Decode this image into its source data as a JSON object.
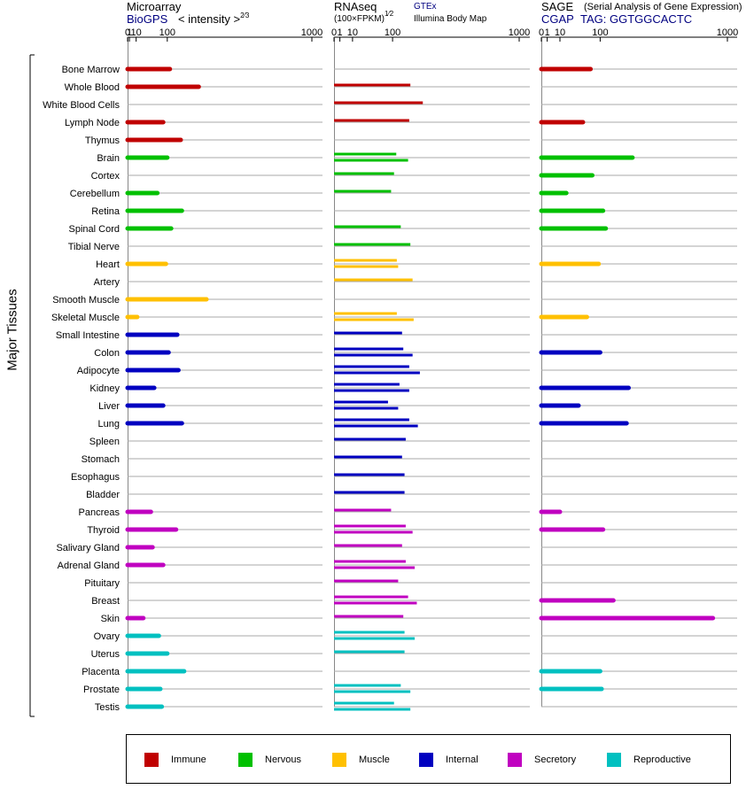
{
  "headers": {
    "microarray": {
      "title": "Microarray",
      "source": "BioGPS",
      "scale_label": "< intensity >",
      "scale_exp": "2⁄3"
    },
    "rnaseq": {
      "title": "RNAseq",
      "scale_label": "(100×FPKM)",
      "scale_exp": "1⁄2",
      "source_a": "GTEx",
      "source_b": "Illumina Body Map"
    },
    "sage": {
      "title": "SAGE",
      "subtitle": "(Serial Analysis of Gene Expression)",
      "source": "CGAP",
      "tag": "TAG: GGTGGCACTC"
    }
  },
  "y_axis_title": "Major Tissues",
  "colors": {
    "Immune": "#c00000",
    "Nervous": "#00c000",
    "Muscle": "#ffc000",
    "Internal": "#0000c0",
    "Secretory": "#c000c0",
    "Reproductive": "#00c0c0"
  },
  "legend": [
    {
      "name": "Immune",
      "color": "#c00000"
    },
    {
      "name": "Nervous",
      "color": "#00c000"
    },
    {
      "name": "Muscle",
      "color": "#ffc000"
    },
    {
      "name": "Internal",
      "color": "#0000c0"
    },
    {
      "name": "Secretory",
      "color": "#c000c0"
    },
    {
      "name": "Reproductive",
      "color": "#00c0c0"
    }
  ],
  "chart_data": {
    "type": "bar",
    "orientation": "horizontal",
    "xscale": "power",
    "panels": [
      {
        "name": "Microarray",
        "xticks": [
          0,
          1,
          10,
          100,
          1000
        ],
        "xlim": [
          0,
          1000
        ],
        "exponent": 0.6667
      },
      {
        "name": "RNAseq",
        "xticks": [
          0,
          1,
          10,
          100,
          1000
        ],
        "xlim": [
          0,
          1000
        ],
        "exponent": 0.5
      },
      {
        "name": "SAGE",
        "xticks": [
          0,
          1,
          10,
          100,
          1000
        ],
        "xlim": [
          0,
          1000
        ],
        "exponent": 0.5
      }
    ],
    "tissues": [
      {
        "name": "Bone Marrow",
        "group": "Immune",
        "microarray": 110,
        "rnaseq": [],
        "sage": [
          70
        ]
      },
      {
        "name": "Whole Blood",
        "group": "Immune",
        "microarray": 240,
        "rnaseq": [
          170
        ],
        "sage": []
      },
      {
        "name": "White Blood Cells",
        "group": "Immune",
        "microarray": null,
        "rnaseq": [
          230
        ],
        "sage": []
      },
      {
        "name": "Lymph Node",
        "group": "Immune",
        "microarray": 85,
        "rnaseq": [
          165
        ],
        "sage": [
          50
        ]
      },
      {
        "name": "Thymus",
        "group": "Immune",
        "microarray": 155,
        "rnaseq": [],
        "sage": []
      },
      {
        "name": "Brain",
        "group": "Nervous",
        "microarray": 100,
        "rnaseq": [
          113,
          160
        ],
        "sage": [
          240
        ]
      },
      {
        "name": "Cortex",
        "group": "Nervous",
        "microarray": null,
        "rnaseq": [
          105
        ],
        "sage": [
          75
        ]
      },
      {
        "name": "Cerebellum",
        "group": "Nervous",
        "microarray": 65,
        "rnaseq": [
          95
        ],
        "sage": [
          18
        ]
      },
      {
        "name": "Retina",
        "group": "Nervous",
        "microarray": 160,
        "rnaseq": [],
        "sage": [
          110
        ]
      },
      {
        "name": "Spinal Cord",
        "group": "Nervous",
        "microarray": 115,
        "rnaseq": [
          130
        ],
        "sage": [
          120
        ]
      },
      {
        "name": "Tibial Nerve",
        "group": "Nervous",
        "microarray": null,
        "rnaseq": [
          170
        ],
        "sage": []
      },
      {
        "name": "Heart",
        "group": "Muscle",
        "microarray": 95,
        "rnaseq": [
          115,
          120
        ],
        "sage": [
          95
        ]
      },
      {
        "name": "Artery",
        "group": "Muscle",
        "microarray": null,
        "rnaseq": [
          180
        ],
        "sage": []
      },
      {
        "name": "Smooth Muscle",
        "group": "Muscle",
        "microarray": 280,
        "rnaseq": [],
        "sage": []
      },
      {
        "name": "Skeletal Muscle",
        "group": "Muscle",
        "microarray": 12,
        "rnaseq": [
          115,
          185
        ],
        "sage": [
          60
        ]
      },
      {
        "name": "Small Intestine",
        "group": "Internal",
        "microarray": 140,
        "rnaseq": [
          135
        ],
        "sage": []
      },
      {
        "name": "Colon",
        "group": "Internal",
        "microarray": 105,
        "rnaseq": [
          140,
          180
        ],
        "sage": [
          100
        ]
      },
      {
        "name": "Adipocyte",
        "group": "Internal",
        "microarray": 145,
        "rnaseq": [
          165,
          215
        ],
        "sage": []
      },
      {
        "name": "Kidney",
        "group": "Internal",
        "microarray": 55,
        "rnaseq": [
          125,
          165
        ],
        "sage": [
          220
        ]
      },
      {
        "name": "Liver",
        "group": "Internal",
        "microarray": 85,
        "rnaseq": [
          85,
          120
        ],
        "sage": [
          40
        ]
      },
      {
        "name": "Lung",
        "group": "Internal",
        "microarray": 160,
        "rnaseq": [
          165,
          205
        ],
        "sage": [
          210
        ]
      },
      {
        "name": "Spleen",
        "group": "Internal",
        "microarray": null,
        "rnaseq": [
          150
        ],
        "sage": []
      },
      {
        "name": "Stomach",
        "group": "Internal",
        "microarray": null,
        "rnaseq": [
          135
        ],
        "sage": []
      },
      {
        "name": "Esophagus",
        "group": "Internal",
        "microarray": null,
        "rnaseq": [
          145
        ],
        "sage": []
      },
      {
        "name": "Bladder",
        "group": "Internal",
        "microarray": null,
        "rnaseq": [
          145
        ],
        "sage": []
      },
      {
        "name": "Pancreas",
        "group": "Secretory",
        "microarray": 45,
        "rnaseq": [
          95
        ],
        "sage": [
          10
        ]
      },
      {
        "name": "Thyroid",
        "group": "Secretory",
        "microarray": 135,
        "rnaseq": [
          150,
          180
        ],
        "sage": [
          110
        ]
      },
      {
        "name": "Salivary Gland",
        "group": "Secretory",
        "microarray": 50,
        "rnaseq": [
          135
        ],
        "sage": []
      },
      {
        "name": "Adrenal Gland",
        "group": "Secretory",
        "microarray": 85,
        "rnaseq": [
          150,
          190
        ],
        "sage": []
      },
      {
        "name": "Pituitary",
        "group": "Secretory",
        "microarray": null,
        "rnaseq": [
          120
        ],
        "sage": []
      },
      {
        "name": "Breast",
        "group": "Secretory",
        "microarray": null,
        "rnaseq": [
          160,
          200
        ],
        "sage": [
          150
        ]
      },
      {
        "name": "Skin",
        "group": "Secretory",
        "microarray": 25,
        "rnaseq": [
          140
        ],
        "sage": [
          850
        ]
      },
      {
        "name": "Ovary",
        "group": "Reproductive",
        "microarray": 70,
        "rnaseq": [
          145,
          190
        ],
        "sage": []
      },
      {
        "name": "Uterus",
        "group": "Reproductive",
        "microarray": 100,
        "rnaseq": [
          145
        ],
        "sage": []
      },
      {
        "name": "Placenta",
        "group": "Reproductive",
        "microarray": 170,
        "rnaseq": [],
        "sage": [
          100
        ]
      },
      {
        "name": "Prostate",
        "group": "Reproductive",
        "microarray": 75,
        "rnaseq": [
          130,
          170
        ],
        "sage": [
          105
        ]
      },
      {
        "name": "Testis",
        "group": "Reproductive",
        "microarray": 80,
        "rnaseq": [
          105,
          170
        ],
        "sage": []
      }
    ]
  }
}
